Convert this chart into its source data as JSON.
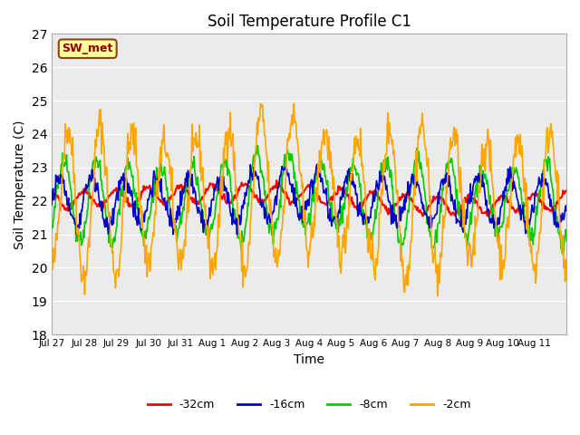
{
  "title": "Soil Temperature Profile C1",
  "xlabel": "Time",
  "ylabel": "Soil Temperature (C)",
  "ylim": [
    18.0,
    27.0
  ],
  "yticks": [
    18.0,
    19.0,
    20.0,
    21.0,
    22.0,
    23.0,
    24.0,
    25.0,
    26.0,
    27.0
  ],
  "xtick_labels": [
    "Jul 27",
    "Jul 28",
    "Jul 29",
    "Jul 30",
    "Jul 31",
    "Aug 1",
    "Aug 2",
    "Aug 3",
    "Aug 4",
    "Aug 5",
    "Aug 6",
    "Aug 7",
    "Aug 8",
    "Aug 9",
    "Aug 10",
    "Aug 11"
  ],
  "annotation_text": "SW_met",
  "annotation_color": "#8B0000",
  "annotation_bg": "#FFFF99",
  "annotation_border": "#8B4513",
  "colors": {
    "-32cm": "#FF0000",
    "-16cm": "#0000CC",
    "-8cm": "#00CC00",
    "-2cm": "#FFA500"
  },
  "legend_labels": [
    "-32cm",
    "-16cm",
    "-8cm",
    "-2cm"
  ],
  "plot_bg": "#EBEBEB"
}
